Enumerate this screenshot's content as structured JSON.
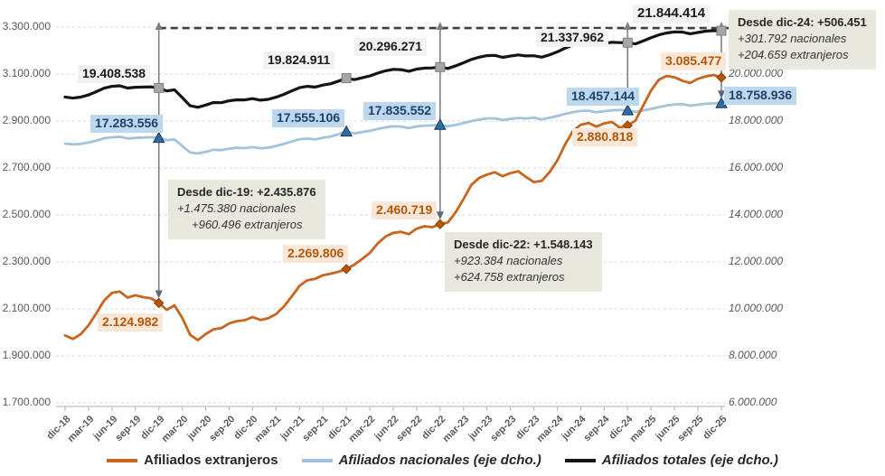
{
  "chart_data": {
    "type": "line",
    "title": "",
    "x_tick_labels": [
      "dic-18",
      "mar-19",
      "jun-19",
      "sep-19",
      "dic-19",
      "mar-20",
      "jun-20",
      "sep-20",
      "dic-20",
      "mar-21",
      "jun-21",
      "sep-21",
      "dic-21",
      "mar-22",
      "jun-22",
      "sep-22",
      "dic-22",
      "mar-23",
      "jun-23",
      "sep-23",
      "dic-23",
      "mar-24",
      "jun-24",
      "sep-24",
      "dic-24",
      "mar-25",
      "jun-25",
      "sep-25",
      "dic-25"
    ],
    "points_per_tick": 3,
    "left_axis": {
      "min": 1700000,
      "max": 3300000,
      "step": 200000,
      "tick_labels": [
        "3.300.000",
        "3.100.000",
        "2.900.000",
        "2.700.000",
        "2.500.000",
        "2.300.000",
        "2.100.000",
        "1.900.000",
        "1.700.000"
      ]
    },
    "right_axis": {
      "min": 6000000,
      "max": 22000000,
      "step": 2000000,
      "tick_labels": [
        "20.000.000",
        "18.000.000",
        "16.000.000",
        "14.000.000",
        "12.000.000",
        "10.000.000",
        "8.000.000",
        "6.000.000"
      ]
    },
    "grid": "dashed-horizontal",
    "legend_position": "bottom",
    "series": [
      {
        "name": "Afiliados extranjeros",
        "axis": "left",
        "color": "#C9651D",
        "marker_color": "#B65708",
        "values": [
          1987000,
          1972000,
          1992000,
          2030000,
          2082000,
          2136000,
          2168000,
          2174000,
          2148000,
          2158000,
          2150000,
          2145000,
          2124982,
          2096000,
          2115000,
          2062000,
          1990000,
          1967000,
          1993000,
          2013000,
          2018000,
          2038000,
          2048000,
          2052000,
          2065000,
          2053000,
          2060000,
          2078000,
          2110000,
          2152000,
          2198000,
          2222000,
          2228000,
          2243000,
          2250000,
          2258000,
          2269806,
          2288000,
          2312000,
          2338000,
          2378000,
          2408000,
          2424000,
          2428000,
          2418000,
          2442000,
          2452000,
          2448000,
          2460719,
          2468000,
          2512000,
          2568000,
          2628000,
          2658000,
          2672000,
          2682000,
          2665000,
          2678000,
          2686000,
          2662000,
          2640000,
          2645000,
          2682000,
          2732000,
          2800000,
          2858000,
          2884000,
          2892000,
          2876000,
          2890000,
          2896000,
          2872000,
          2880818,
          2902000,
          2966000,
          3030000,
          3076000,
          3092000,
          3086000,
          3072000,
          3062000,
          3080000,
          3090000,
          3096000,
          3085477
        ]
      },
      {
        "name": "Afiliados nacionales (eje dcho.)",
        "axis": "right",
        "color": "#A3C2DC",
        "marker_color": "#2E6DA4",
        "values": [
          17037000,
          17003000,
          17028000,
          17080000,
          17168000,
          17264000,
          17307000,
          17326000,
          17257000,
          17282000,
          17295000,
          17310000,
          17283556,
          17184000,
          17215000,
          16938000,
          16660000,
          16618000,
          16687000,
          16777000,
          16762000,
          16822000,
          16857000,
          16848000,
          16890000,
          16837000,
          16865000,
          16937000,
          17025000,
          17128000,
          17222000,
          17253000,
          17217000,
          17287000,
          17340000,
          17442000,
          17555106,
          17472000,
          17528000,
          17582000,
          17662000,
          17732000,
          17776000,
          17762000,
          17702000,
          17768000,
          17803000,
          17812000,
          17835552,
          17772000,
          17838000,
          17912000,
          17997000,
          18062000,
          18113000,
          18113000,
          18045000,
          18087000,
          18129000,
          18113000,
          18140000,
          18075000,
          18138000,
          18213000,
          18305000,
          18377000,
          18431000,
          18438000,
          18374000,
          18420000,
          18459000,
          18468000,
          18457144,
          18383000,
          18449000,
          18515000,
          18594000,
          18658000,
          18709000,
          18718000,
          18653000,
          18695000,
          18735000,
          18754000,
          18758936
        ]
      },
      {
        "name": "Afiliados totales (eje dcho.)",
        "axis": "right",
        "color": "#141414",
        "marker_color": "#A6A6A6",
        "values": [
          19024000,
          18975000,
          19020000,
          19110000,
          19250000,
          19400000,
          19475000,
          19500000,
          19405000,
          19440000,
          19445000,
          19455000,
          19408538,
          19280000,
          19330000,
          19000000,
          18650000,
          18585000,
          18680000,
          18790000,
          18780000,
          18860000,
          18905000,
          18900000,
          18955000,
          18890000,
          18925000,
          19015000,
          19135000,
          19280000,
          19420000,
          19475000,
          19445000,
          19530000,
          19590000,
          19700000,
          19824911,
          19760000,
          19840000,
          19920000,
          20040000,
          20140000,
          20200000,
          20190000,
          20120000,
          20210000,
          20255000,
          20260000,
          20296271,
          20240000,
          20350000,
          20480000,
          20625000,
          20720000,
          20785000,
          20795000,
          20710000,
          20765000,
          20815000,
          20775000,
          20780000,
          20720000,
          20820000,
          20945000,
          21105000,
          21235000,
          21315000,
          21330000,
          21250000,
          21310000,
          21355000,
          21340000,
          21337962,
          21285000,
          21415000,
          21545000,
          21670000,
          21750000,
          21795000,
          21790000,
          21715000,
          21775000,
          21825000,
          21850000,
          21844414
        ]
      }
    ],
    "marker_months": [
      12,
      36,
      48,
      72,
      84
    ],
    "reference_line": {
      "type": "dashed",
      "from_month": 12,
      "to_month": 84,
      "series": 2,
      "at_month": 84
    },
    "arrows": [
      {
        "month": 12,
        "to_series": 0
      },
      {
        "month": 48,
        "to_series": 0
      },
      {
        "month": 72,
        "to_series": 1
      },
      {
        "month": 84,
        "to_series": 1
      }
    ],
    "point_labels": [
      {
        "text": "19.408.538",
        "series": "totales",
        "month_label": "dic-19"
      },
      {
        "text": "17.283.556",
        "series": "nacionales",
        "month_label": "dic-19"
      },
      {
        "text": "2.124.982",
        "series": "extranjeros",
        "month_label": "dic-19"
      },
      {
        "text": "19.824.911",
        "series": "totales",
        "month_label": "dic-21"
      },
      {
        "text": "17.555.106",
        "series": "nacionales",
        "month_label": "dic-21"
      },
      {
        "text": "2.269.806",
        "series": "extranjeros",
        "month_label": "dic-21"
      },
      {
        "text": "20.296.271",
        "series": "totales",
        "month_label": "dic-22"
      },
      {
        "text": "17.835.552",
        "series": "nacionales",
        "month_label": "dic-22"
      },
      {
        "text": "2.460.719",
        "series": "extranjeros",
        "month_label": "dic-22"
      },
      {
        "text": "21.337.962",
        "series": "totales",
        "month_label": "dic-24"
      },
      {
        "text": "18.457.144",
        "series": "nacionales",
        "month_label": "dic-24"
      },
      {
        "text": "2.880.818",
        "series": "extranjeros",
        "month_label": "dic-24"
      },
      {
        "text": "21.844.414",
        "series": "totales",
        "month_label": "dic-25"
      },
      {
        "text": "3.085.477",
        "series": "extranjeros",
        "month_label": "dic-25"
      },
      {
        "text": "18.758.936",
        "series": "nacionales",
        "month_label": "dic-25"
      }
    ],
    "annotations": [
      {
        "title": "Desde dic-19: +2.435.876",
        "line1": "+1.475.380 nacionales",
        "line2": "+960.496 extranjeros"
      },
      {
        "title": "Desde dic-22: +1.548.143",
        "line1": "+923.384 nacionales",
        "line2": "+624.758 extranjeros"
      },
      {
        "title": "Desde dic-24: +506.451",
        "line1": "+301.792 nacionales",
        "line2": "+204.659 extranjeros"
      }
    ],
    "legend": [
      {
        "label": "Afiliados extranjeros",
        "italic": false
      },
      {
        "label": "Afiliados nacionales (eje dcho.)",
        "italic": true
      },
      {
        "label": "Afiliados totales (eje dcho.)",
        "italic": true
      }
    ],
    "colors": {
      "grid": "#D9D9D9",
      "axis_text": "#595959",
      "axis_line": "#BFBFBF",
      "reference_line": "#404040",
      "arrow": "#7F7F7F",
      "label_bg_totales": "#F2F2F2",
      "label_bg_nacionales": "#BDD7EE",
      "label_bg_extranjeros": "#FBE7D8",
      "annotation_bg": "#E9E8DF"
    }
  }
}
